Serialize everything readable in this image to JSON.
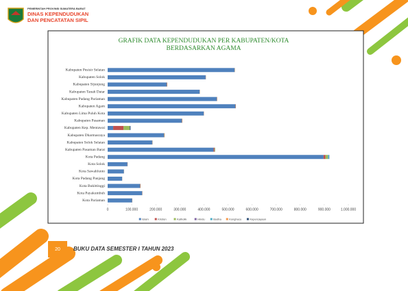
{
  "header": {
    "agency": "PEMERINTAH PROVINSI SUMATERA BARAT",
    "line1": "DINAS KEPENDUDUKAN",
    "line2": "DAN PENCATATAN SIPIL"
  },
  "footer": {
    "page": "20",
    "title": "BUKU DATA SEMESTER I TAHUN 2023"
  },
  "chart_data": {
    "type": "stacked_barh",
    "title": [
      "GRAFIK DATA KEPENDUDUKAN PER KABUPATEN/KOTA",
      "BERDASARKAN AGAMA"
    ],
    "categories": [
      "Kabupaten Pesisir Selatan",
      "Kabupaten Solok",
      "Kabupaten Sijunjung",
      "Kabupaten Tanah Datar",
      "Kabupaten Padang Pariaman",
      "Kabupaten Agam",
      "Kabupaten Lima Puluh Kota",
      "Kabupaten Pasaman",
      "Kabupaten Kep. Mentawai",
      "Kabupaten Dharmasraya",
      "Kabupaten Solok Selatan",
      "Kabupaten Pasaman Barat",
      "Kota Padang",
      "Kota Solok",
      "Kota Sawahlunto",
      "Kota Padang Panjang",
      "Kota Bukittinggi",
      "Kota Payakumbuh",
      "Kota Pariaman"
    ],
    "series": [
      {
        "name": "Islam",
        "color": "#4f81bd",
        "values": [
          527000,
          407000,
          245000,
          382000,
          453000,
          530000,
          399000,
          308000,
          23000,
          234000,
          185000,
          440000,
          897000,
          82000,
          67000,
          60000,
          134000,
          143000,
          100000
        ]
      },
      {
        "name": "Kristen",
        "color": "#c0504d",
        "values": [
          1000,
          800,
          1500,
          700,
          1200,
          1500,
          800,
          1500,
          43000,
          1500,
          1000,
          4000,
          8000,
          600,
          500,
          300,
          1500,
          800,
          300
        ]
      },
      {
        "name": "Katholik",
        "color": "#9bbb59",
        "values": [
          500,
          400,
          800,
          300,
          600,
          700,
          300,
          800,
          26000,
          1000,
          500,
          2000,
          10000,
          400,
          300,
          200,
          800,
          400,
          200
        ]
      },
      {
        "name": "Hindu",
        "color": "#8064a2",
        "values": [
          10,
          10,
          20,
          10,
          20,
          20,
          10,
          10,
          10,
          30,
          10,
          20,
          500,
          10,
          10,
          10,
          20,
          10,
          10
        ]
      },
      {
        "name": "Budha",
        "color": "#4bacc6",
        "values": [
          100,
          100,
          200,
          100,
          200,
          300,
          100,
          100,
          50,
          200,
          100,
          300,
          5000,
          100,
          100,
          50,
          300,
          200,
          50
        ]
      },
      {
        "name": "Konghucu",
        "color": "#f79646",
        "values": [
          10,
          10,
          10,
          10,
          10,
          20,
          10,
          10,
          10,
          10,
          10,
          20,
          300,
          10,
          10,
          10,
          20,
          10,
          10
        ]
      },
      {
        "name": "Kepercayaan",
        "color": "#2c4d75",
        "values": [
          100,
          100,
          100,
          100,
          100,
          200,
          100,
          100,
          3000,
          100,
          100,
          200,
          500,
          100,
          100,
          50,
          200,
          100,
          1500
        ]
      }
    ],
    "xlim": [
      0,
      1000000
    ],
    "xticks": [
      0,
      {
        "value": 100000,
        "label": "100.000"
      },
      {
        "value": 200000,
        "label": "200.000"
      },
      {
        "value": 300000,
        "label": "300.000"
      },
      {
        "value": 400000,
        "label": "400.000"
      },
      {
        "value": 500000,
        "label": "500.000"
      },
      {
        "value": 600000,
        "label": "600.000"
      },
      {
        "value": 700000,
        "label": "700.000"
      },
      {
        "value": 800000,
        "label": "800.000"
      },
      {
        "value": 900000,
        "label": "900.000"
      },
      {
        "value": 1000000,
        "label": "1.000.000"
      }
    ]
  }
}
